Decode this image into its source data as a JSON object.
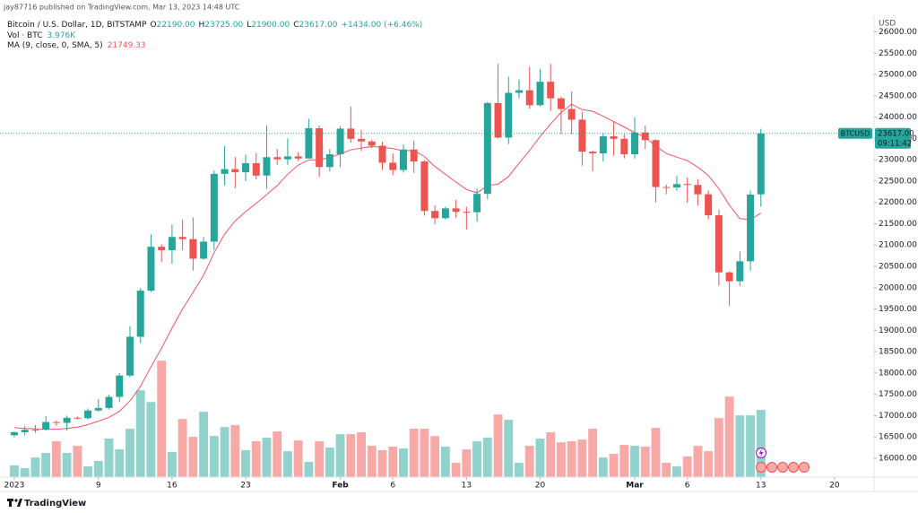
{
  "header": {
    "published": "jay87716 published on TradingView.com, Mar 13, 2023 14:48 UTC"
  },
  "chart_data": {
    "type": "candlestick",
    "symbol": "Bitcoin / U.S. Dollar, 1D, BITSTAMP",
    "ohlc_legend": [
      {
        "label": "O",
        "value": "22190.00"
      },
      {
        "label": "H",
        "value": "23725.00"
      },
      {
        "label": "L",
        "value": "21900.00"
      },
      {
        "label": "C",
        "value": "23617.00"
      }
    ],
    "change": "+1434.00 (+6.46%)",
    "x": [
      0,
      1,
      2,
      3,
      4,
      5,
      6,
      7,
      8,
      9,
      10,
      11,
      12,
      13,
      14,
      15,
      16,
      17,
      18,
      19,
      20,
      21,
      22,
      23,
      24,
      25,
      26,
      27,
      28,
      29,
      30,
      31,
      32,
      33,
      34,
      35,
      36,
      37,
      38,
      39,
      40,
      41,
      42,
      43,
      44,
      45,
      46,
      47,
      48,
      49,
      50,
      51,
      52,
      53,
      54,
      55,
      56,
      57,
      58,
      59,
      60,
      61,
      62,
      63,
      64,
      65,
      66,
      67,
      68,
      69,
      70,
      71
    ],
    "open": [
      16540,
      16610,
      16670,
      16670,
      16850,
      16830,
      16950,
      16940,
      17120,
      17180,
      17440,
      17940,
      18850,
      19930,
      20960,
      20880,
      21190,
      21140,
      20680,
      21080,
      22670,
      22780,
      22710,
      22920,
      22630,
      23060,
      23010,
      23080,
      23030,
      23740,
      22830,
      23130,
      23730,
      23490,
      23430,
      23330,
      22930,
      22760,
      23240,
      22960,
      21800,
      21630,
      21860,
      21780,
      21770,
      22200,
      24330,
      23520,
      24570,
      24630,
      24280,
      24830,
      24440,
      24190,
      23940,
      23190,
      23150,
      23550,
      23490,
      23130,
      23640,
      23460,
      22360,
      22350,
      22430,
      22410,
      22190,
      21700,
      20360,
      20150,
      20620,
      22190
    ],
    "high": [
      16630,
      16760,
      16780,
      16990,
      16880,
      17000,
      16980,
      17170,
      17390,
      17490,
      18000,
      19100,
      19990,
      21250,
      21020,
      21480,
      21600,
      21650,
      21190,
      22750,
      23320,
      23070,
      23120,
      23160,
      23800,
      23250,
      23500,
      23180,
      23960,
      23800,
      23250,
      23790,
      24250,
      23700,
      23470,
      23420,
      23150,
      23360,
      23450,
      23000,
      21930,
      21900,
      22060,
      21900,
      22320,
      24360,
      25250,
      24950,
      24880,
      25180,
      25130,
      25250,
      24480,
      24600,
      24130,
      23220,
      23630,
      23880,
      23600,
      24000,
      23800,
      23480,
      22420,
      22630,
      22580,
      22550,
      22280,
      21830,
      20380,
      20850,
      22280,
      23725
    ],
    "low": [
      16490,
      16540,
      16600,
      16650,
      16760,
      16650,
      16910,
      16910,
      17090,
      17140,
      17320,
      17900,
      18700,
      19900,
      20600,
      20560,
      20880,
      20400,
      20660,
      20880,
      22400,
      22330,
      22500,
      22540,
      22320,
      22880,
      22880,
      22970,
      23030,
      22600,
      22730,
      22830,
      23400,
      23200,
      23270,
      22760,
      22640,
      22700,
      22690,
      21690,
      21490,
      21600,
      21640,
      21370,
      21550,
      22080,
      23500,
      23370,
      24440,
      24200,
      24250,
      24150,
      23600,
      23600,
      22860,
      22730,
      22960,
      23100,
      23030,
      23030,
      23250,
      22000,
      22190,
      22270,
      21990,
      21930,
      21600,
      20050,
      19570,
      20040,
      20400,
      21900
    ],
    "close": [
      16610,
      16670,
      16670,
      16850,
      16830,
      16950,
      16940,
      17120,
      17180,
      17440,
      17940,
      18850,
      19930,
      20960,
      20880,
      21190,
      21140,
      20680,
      21080,
      22670,
      22780,
      22710,
      22920,
      22630,
      23060,
      23010,
      23080,
      23030,
      23740,
      22830,
      23130,
      23730,
      23490,
      23430,
      23330,
      22930,
      22760,
      23240,
      22960,
      21800,
      21630,
      21860,
      21780,
      21770,
      22200,
      24330,
      23520,
      24570,
      24630,
      24280,
      24830,
      24440,
      24190,
      23940,
      23190,
      23150,
      23550,
      23490,
      23130,
      23640,
      23460,
      22360,
      22350,
      22430,
      22410,
      22190,
      21700,
      20360,
      20150,
      20620,
      22183,
      23617
    ],
    "up_color": "#26a69a",
    "down_color": "#ef5350",
    "volume": {
      "name": "Vol · BTC",
      "last": "3.976K",
      "up_color": "#92d2cc",
      "down_color": "#f7a9a7",
      "ylim": [
        0,
        27.3
      ],
      "values": [
        0.69,
        0.53,
        1.16,
        1.43,
        2.12,
        1.43,
        1.85,
        0.63,
        0.95,
        2.28,
        1.64,
        2.86,
        5.13,
        4.44,
        6.88,
        1.48,
        3.44,
        2.38,
        3.86,
        2.43,
        2.96,
        3.07,
        1.59,
        2.12,
        2.33,
        2.7,
        1.53,
        2.17,
        0.9,
        2.12,
        1.75,
        2.54,
        2.54,
        2.65,
        1.85,
        1.59,
        1.8,
        1.69,
        2.86,
        2.86,
        2.43,
        1.8,
        0.85,
        1.64,
        2.12,
        2.33,
        3.7,
        3.39,
        0.85,
        1.85,
        2.28,
        2.65,
        2.06,
        2.12,
        2.22,
        2.86,
        1.16,
        1.38,
        1.9,
        1.85,
        1.8,
        2.91,
        0.85,
        0.63,
        1.22,
        1.85,
        1.53,
        3.49,
        4.76,
        3.65,
        3.65,
        3.976
      ]
    },
    "ma": {
      "name": "MA (9, close, 0, SMA, 5)",
      "last": "21749.33",
      "color": "#f7525f",
      "values": [
        16720,
        16700,
        16690,
        16680,
        16680,
        16700,
        16730,
        16790,
        16869,
        16961,
        17102,
        17344,
        17687,
        18146,
        18582,
        19054,
        19501,
        19890,
        20294,
        20820,
        21257,
        21566,
        21783,
        21978,
        22186,
        22393,
        22660,
        22877,
        22996,
        23001,
        23048,
        23138,
        23233,
        23274,
        23310,
        23293,
        23263,
        23208,
        23222,
        23074,
        22841,
        22660,
        22477,
        22303,
        22222,
        22397,
        22428,
        22607,
        22921,
        23216,
        23546,
        23841,
        24110,
        24303,
        24177,
        24136,
        24022,
        23896,
        23768,
        23636,
        23527,
        23323,
        23147,
        23062,
        22980,
        22829,
        22630,
        22322,
        21934,
        21619,
        21599,
        21749.33
      ]
    },
    "axis_unit": "USD",
    "ylim": [
      15558,
      26389
    ],
    "yticks": [
      {
        "value": 16000,
        "label": "16000.00"
      },
      {
        "value": 16500,
        "label": "16500.00"
      },
      {
        "value": 17000,
        "label": "17000.00"
      },
      {
        "value": 17500,
        "label": "17500.00"
      },
      {
        "value": 18000,
        "label": "18000.00"
      },
      {
        "value": 18500,
        "label": "18500.00"
      },
      {
        "value": 19000,
        "label": "19000.00"
      },
      {
        "value": 19500,
        "label": "19500.00"
      },
      {
        "value": 20000,
        "label": "20000.00"
      },
      {
        "value": 20500,
        "label": "20500.00"
      },
      {
        "value": 21000,
        "label": "21000.00"
      },
      {
        "value": 21500,
        "label": "21500.00"
      },
      {
        "value": 22000,
        "label": "22000.00"
      },
      {
        "value": 22500,
        "label": "22500.00"
      },
      {
        "value": 23000,
        "label": "23000.00"
      },
      {
        "value": 23500,
        "label": "23500.00"
      },
      {
        "value": 24000,
        "label": "24000.00"
      },
      {
        "value": 24500,
        "label": "24500.00"
      },
      {
        "value": 25000,
        "label": "25000.00"
      },
      {
        "value": 25500,
        "label": "25500.00"
      },
      {
        "value": 26000,
        "label": "26000.00"
      }
    ],
    "xlim": [
      -1.36,
      81.76
    ],
    "xticks": [
      {
        "value": 0,
        "label": "2023"
      },
      {
        "value": 8,
        "label": "9"
      },
      {
        "value": 15,
        "label": "16"
      },
      {
        "value": 22,
        "label": "23"
      },
      {
        "value": 31,
        "label": "Feb"
      },
      {
        "value": 36,
        "label": "6"
      },
      {
        "value": 43,
        "label": "13"
      },
      {
        "value": 50,
        "label": "20"
      },
      {
        "value": 59,
        "label": "Mar"
      },
      {
        "value": 64,
        "label": "6"
      },
      {
        "value": 71,
        "label": "13"
      },
      {
        "value": 78,
        "label": "20"
      }
    ],
    "last_price": {
      "symbol": "BTCUSD",
      "value": 23617,
      "label": "23617.00",
      "countdown": "09:11:42"
    }
  },
  "footer": {
    "brand": "TradingView"
  }
}
